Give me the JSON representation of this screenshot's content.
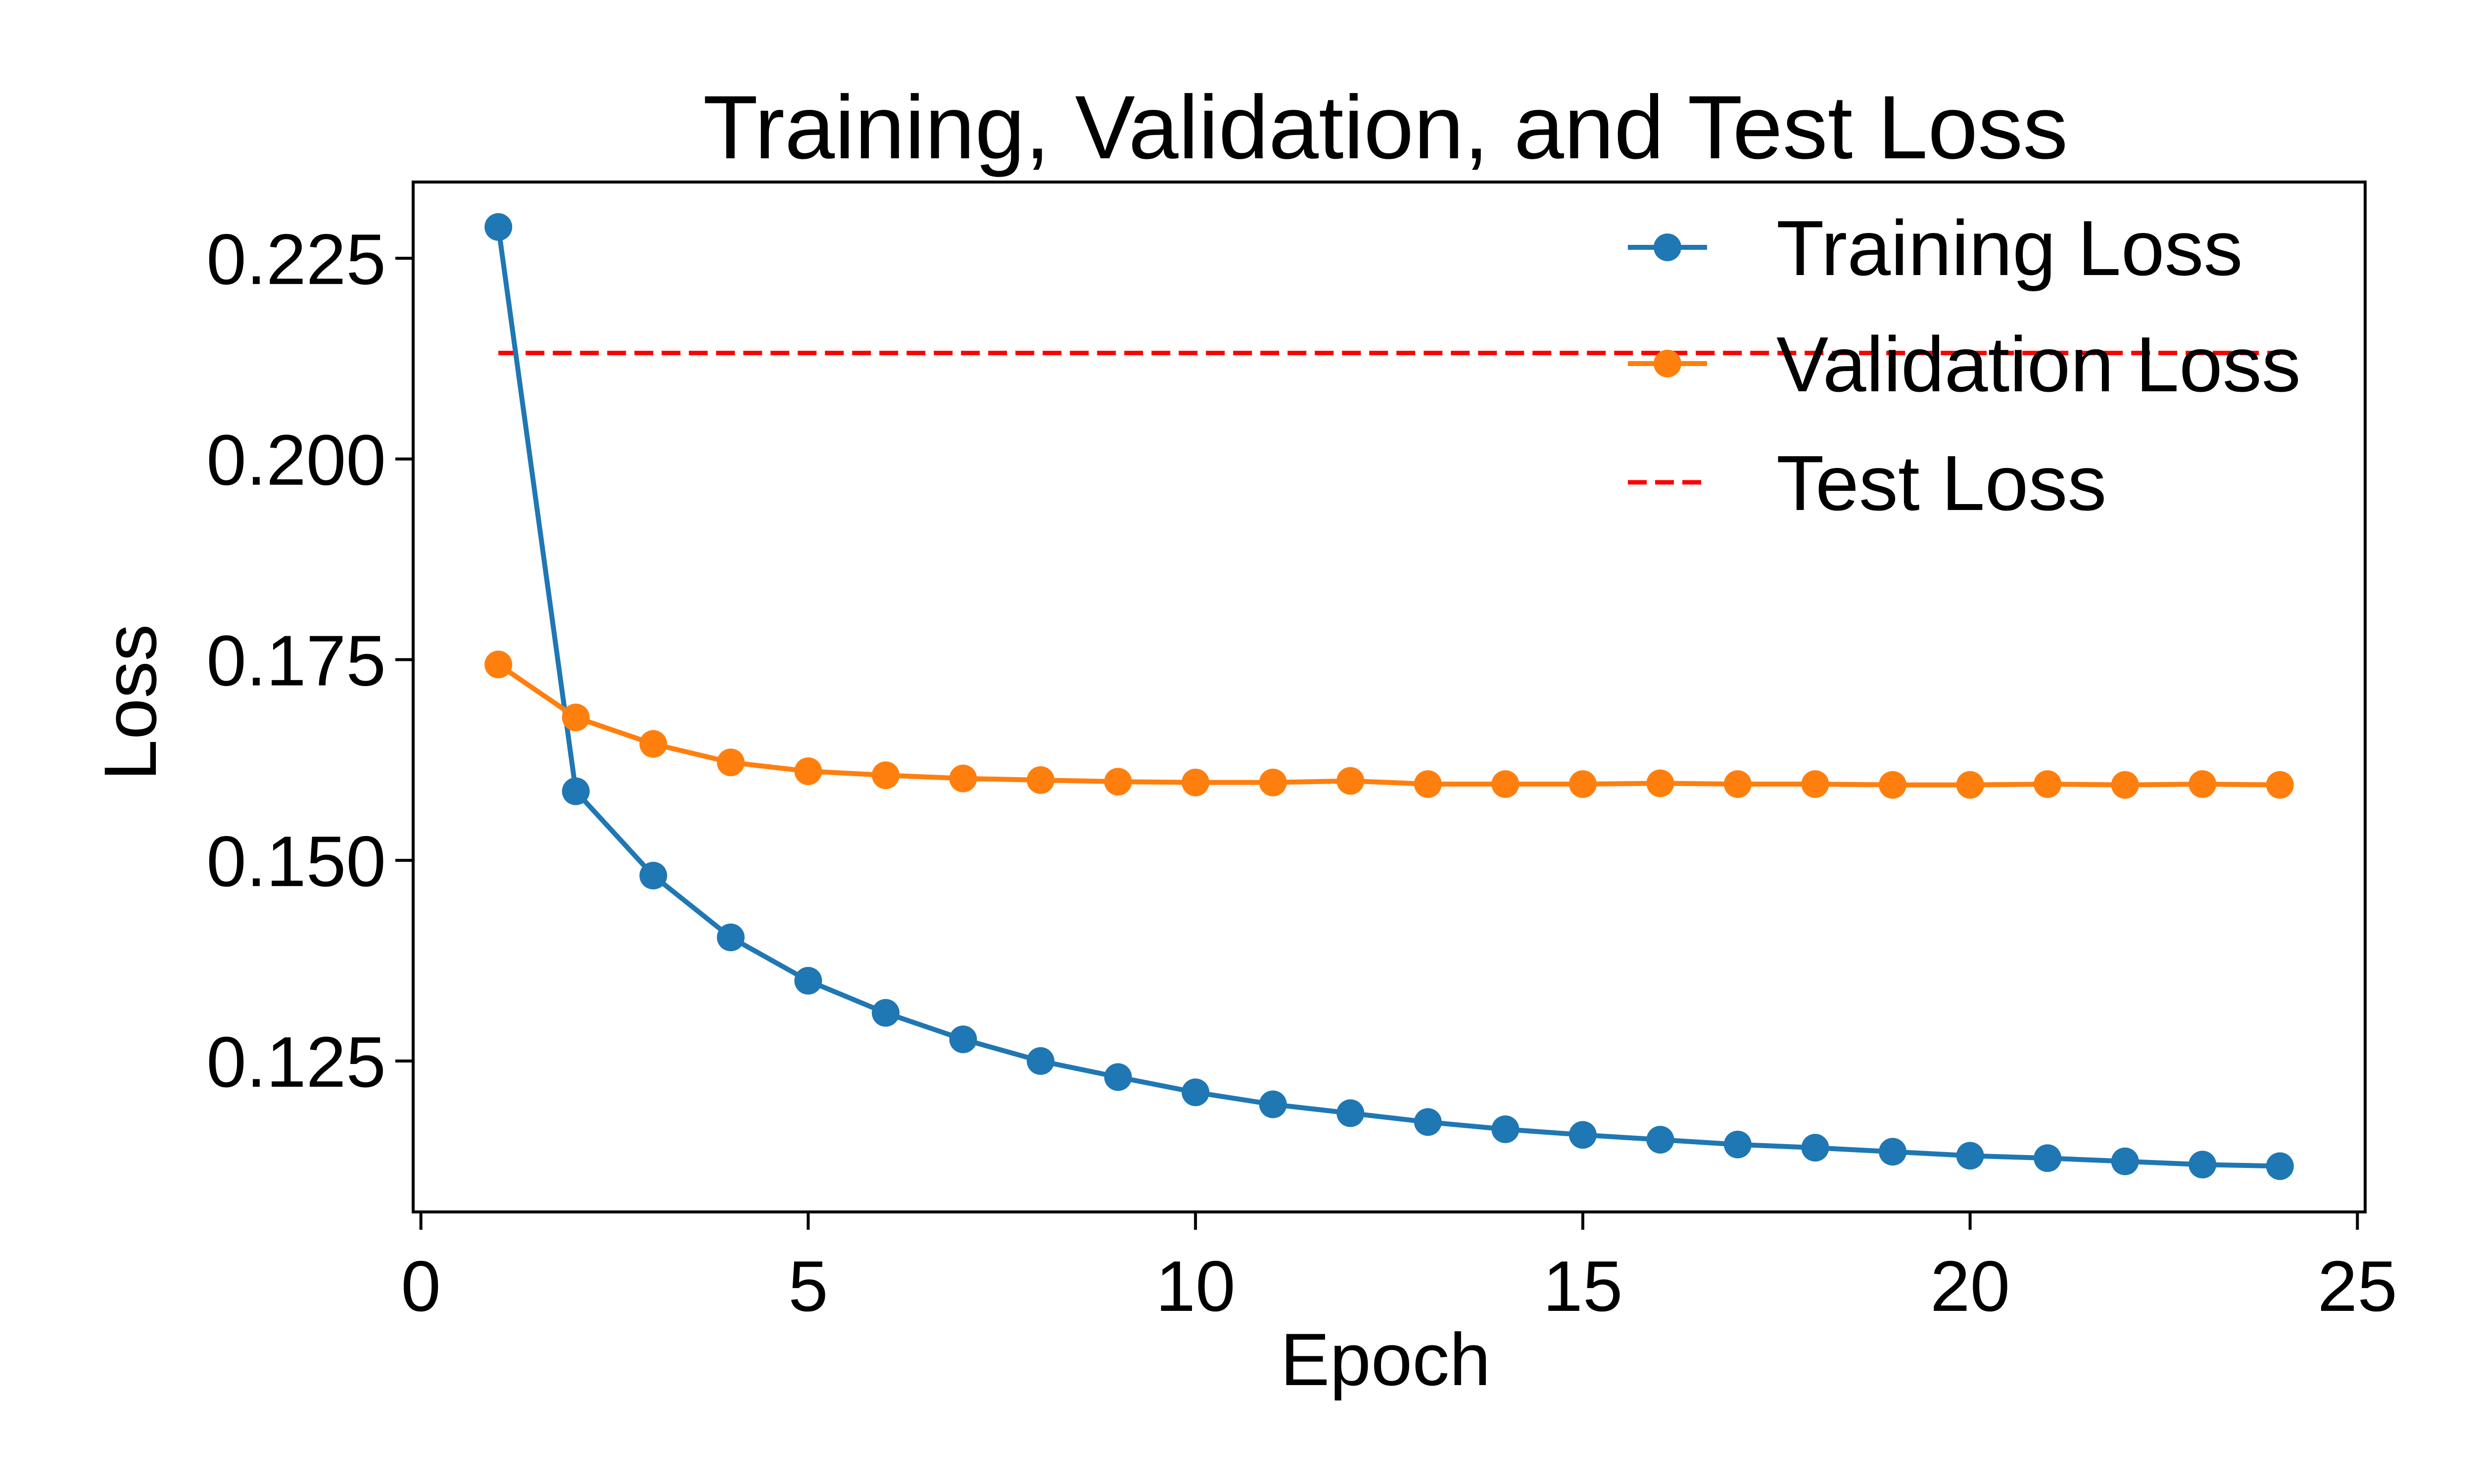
{
  "chart_data": {
    "type": "line",
    "title": "Training, Validation, and Test Loss",
    "xlabel": "Epoch",
    "ylabel": "Loss",
    "xlim": [
      -0.1,
      25.1
    ],
    "ylim": [
      0.1062,
      0.2345
    ],
    "xticks": [
      0,
      5,
      10,
      15,
      20,
      25
    ],
    "yticks": [
      0.125,
      0.15,
      0.175,
      0.2,
      0.225
    ],
    "ytick_labels": [
      "0.125",
      "0.150",
      "0.175",
      "0.200",
      "0.225"
    ],
    "grid": false,
    "legend_position": "top-right",
    "x": [
      1,
      2,
      3,
      4,
      5,
      6,
      7,
      8,
      9,
      10,
      11,
      12,
      13,
      14,
      15,
      16,
      17,
      18,
      19,
      20,
      21,
      22,
      23,
      24
    ],
    "series": [
      {
        "name": "Training Loss",
        "color": "#1f77b4",
        "style": "solid",
        "marker": "circle",
        "values": [
          0.2289,
          0.1586,
          0.1481,
          0.1404,
          0.135,
          0.131,
          0.1277,
          0.125,
          0.123,
          0.1211,
          0.1196,
          0.1185,
          0.1174,
          0.1165,
          0.1158,
          0.1152,
          0.1146,
          0.1142,
          0.1137,
          0.1132,
          0.1129,
          0.1125,
          0.1121,
          0.1119
        ]
      },
      {
        "name": "Validation Loss",
        "color": "#ff7f0e",
        "style": "solid",
        "marker": "circle",
        "values": [
          0.1744,
          0.1678,
          0.1645,
          0.1622,
          0.1611,
          0.1606,
          0.1602,
          0.16,
          0.1598,
          0.1597,
          0.1597,
          0.1599,
          0.1595,
          0.1595,
          0.1595,
          0.1596,
          0.1595,
          0.1595,
          0.1594,
          0.1594,
          0.1595,
          0.1594,
          0.1595,
          0.1594
        ]
      },
      {
        "name": "Test Loss",
        "color": "#ff0000",
        "style": "dashed",
        "marker": "none",
        "values": [
          0.2132,
          0.2132,
          0.2132,
          0.2132,
          0.2132,
          0.2132,
          0.2132,
          0.2132,
          0.2132,
          0.2132,
          0.2132,
          0.2132,
          0.2132,
          0.2132,
          0.2132,
          0.2132,
          0.2132,
          0.2132,
          0.2132,
          0.2132,
          0.2132,
          0.2132,
          0.2132,
          0.2132
        ]
      }
    ]
  }
}
